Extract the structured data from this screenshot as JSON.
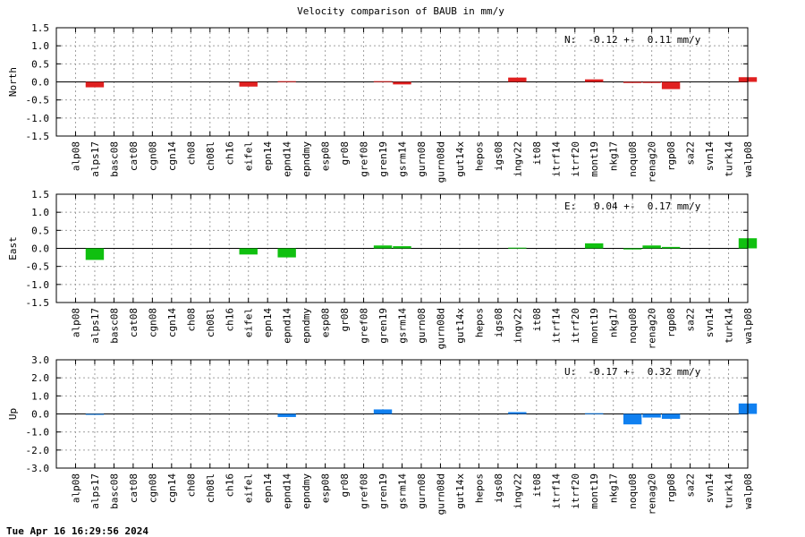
{
  "title": "Velocity comparison of BAUB in mm/y",
  "footer": "Tue Apr 16 16:29:56 2024",
  "chart_data": [
    {
      "type": "bar",
      "ylabel": "North",
      "annotation": "N:  -0.12 +-  0.11 mm/y",
      "color": "#e02020",
      "ylim": [
        -1.5,
        1.5
      ],
      "yticks": [
        -1.5,
        -1.0,
        -0.5,
        0.0,
        0.5,
        1.0,
        1.5
      ],
      "grid": true,
      "categories": [
        "alp08",
        "alps17",
        "basc08",
        "cat08",
        "cgn08",
        "cgn14",
        "ch08",
        "ch08l",
        "ch16",
        "eifel",
        "epn14",
        "epnd14",
        "epndmy",
        "esp08",
        "gr08",
        "gref08",
        "gren19",
        "gsrm14",
        "gurn08",
        "gurn08d",
        "gut14x",
        "hepos",
        "igs08",
        "ingv22",
        "it08",
        "itrf14",
        "itrf20",
        "mont19",
        "nkg17",
        "noqu08",
        "renag20",
        "rgp08",
        "sa22",
        "svn14",
        "turk14",
        "walp08"
      ],
      "values": [
        0,
        -0.15,
        0,
        0,
        0,
        0,
        0,
        0,
        0,
        -0.13,
        0,
        0.02,
        0,
        0,
        0,
        0,
        0.02,
        -0.07,
        0,
        0,
        0,
        0,
        0,
        0.12,
        0,
        0,
        0,
        0.07,
        0,
        -0.03,
        -0.03,
        -0.2,
        0,
        0,
        0,
        0.13
      ]
    },
    {
      "type": "bar",
      "ylabel": "East",
      "annotation": "E:   0.04 +-  0.17 mm/y",
      "color": "#10c010",
      "ylim": [
        -1.5,
        1.5
      ],
      "yticks": [
        -1.5,
        -1.0,
        -0.5,
        0.0,
        0.5,
        1.0,
        1.5
      ],
      "grid": true,
      "categories": [
        "alp08",
        "alps17",
        "basc08",
        "cat08",
        "cgn08",
        "cgn14",
        "ch08",
        "ch08l",
        "ch16",
        "eifel",
        "epn14",
        "epnd14",
        "epndmy",
        "esp08",
        "gr08",
        "gref08",
        "gren19",
        "gsrm14",
        "gurn08",
        "gurn08d",
        "gut14x",
        "hepos",
        "igs08",
        "ingv22",
        "it08",
        "itrf14",
        "itrf20",
        "mont19",
        "nkg17",
        "noqu08",
        "renag20",
        "rgp08",
        "sa22",
        "svn14",
        "turk14",
        "walp08"
      ],
      "values": [
        0,
        -0.32,
        0,
        0,
        0,
        0,
        0,
        0,
        0,
        -0.17,
        0,
        -0.25,
        0,
        0,
        0,
        0,
        0.08,
        0.06,
        0,
        0,
        0,
        0,
        0,
        0.02,
        0,
        0,
        0,
        0.14,
        0,
        -0.03,
        0.08,
        0.04,
        0,
        0,
        0,
        0.28
      ]
    },
    {
      "type": "bar",
      "ylabel": "Up",
      "annotation": "U:  -0.17 +-  0.32 mm/y",
      "color": "#1080f0",
      "ylim": [
        -3.0,
        3.0
      ],
      "yticks": [
        -3.0,
        -2.0,
        -1.0,
        0.0,
        1.0,
        2.0,
        3.0
      ],
      "grid": true,
      "categories": [
        "alp08",
        "alps17",
        "basc08",
        "cat08",
        "cgn08",
        "cgn14",
        "ch08",
        "ch08l",
        "ch16",
        "eifel",
        "epn14",
        "epnd14",
        "epndmy",
        "esp08",
        "gr08",
        "gref08",
        "gren19",
        "gsrm14",
        "gurn08",
        "gurn08d",
        "gut14x",
        "hepos",
        "igs08",
        "ingv22",
        "it08",
        "itrf14",
        "itrf20",
        "mont19",
        "nkg17",
        "noqu08",
        "renag20",
        "rgp08",
        "sa22",
        "svn14",
        "turk14",
        "walp08"
      ],
      "values": [
        0,
        -0.05,
        0,
        0,
        0,
        0,
        0,
        0,
        0,
        0,
        0,
        -0.17,
        0,
        0,
        0,
        0,
        0.25,
        0,
        0,
        0,
        0,
        0,
        0,
        0.1,
        0,
        0,
        0,
        0.04,
        0,
        -0.58,
        -0.2,
        -0.27,
        0,
        0,
        0,
        0.58
      ]
    }
  ]
}
